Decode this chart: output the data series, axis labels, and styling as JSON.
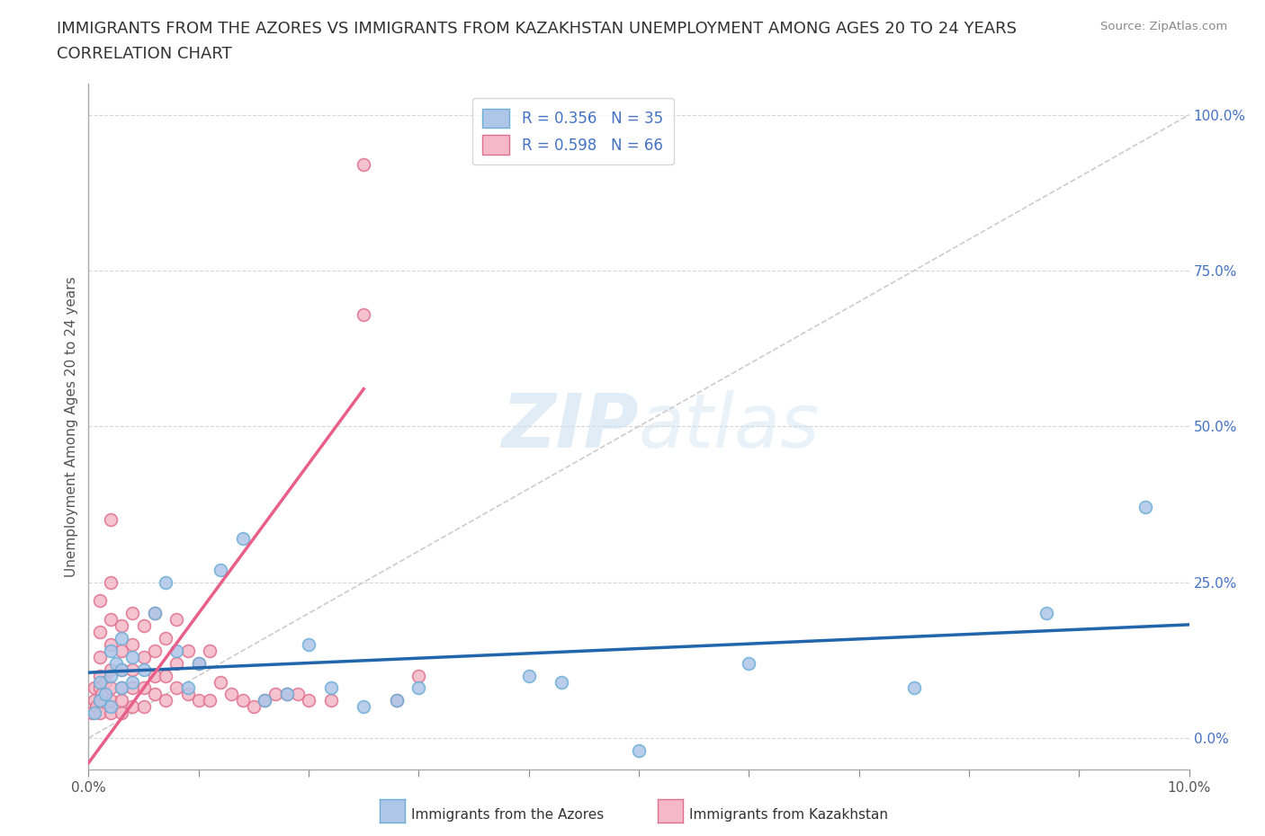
{
  "title_line1": "IMMIGRANTS FROM THE AZORES VS IMMIGRANTS FROM KAZAKHSTAN UNEMPLOYMENT AMONG AGES 20 TO 24 YEARS",
  "title_line2": "CORRELATION CHART",
  "source_text": "Source: ZipAtlas.com",
  "ylabel": "Unemployment Among Ages 20 to 24 years",
  "ytick_labels": [
    "0.0%",
    "25.0%",
    "50.0%",
    "75.0%",
    "100.0%"
  ],
  "ytick_values": [
    0,
    0.25,
    0.5,
    0.75,
    1.0
  ],
  "xlim": [
    0.0,
    0.1
  ],
  "ylim": [
    -0.05,
    1.05
  ],
  "azores_color": "#aec6e8",
  "azores_edge": "#6baed6",
  "kazakhstan_color": "#f4b8c8",
  "kazakhstan_edge": "#e07090",
  "azores_line_color": "#2166ac",
  "kazakhstan_line_color": "#e8608a",
  "diagonal_color": "#cccccc",
  "R_azores": 0.356,
  "N_azores": 35,
  "R_kazakhstan": 0.598,
  "N_kazakhstan": 66,
  "legend_label_azores": "Immigrants from the Azores",
  "legend_label_kazakhstan": "Immigrants from Kazakhstan",
  "watermark_zip": "ZIP",
  "watermark_atlas": "atlas",
  "background_color": "#ffffff",
  "azores_x": [
    0.0005,
    0.001,
    0.001,
    0.0015,
    0.002,
    0.002,
    0.002,
    0.0025,
    0.003,
    0.003,
    0.003,
    0.004,
    0.004,
    0.005,
    0.006,
    0.007,
    0.008,
    0.009,
    0.01,
    0.012,
    0.014,
    0.016,
    0.018,
    0.02,
    0.022,
    0.025,
    0.028,
    0.03,
    0.04,
    0.043,
    0.05,
    0.06,
    0.075,
    0.087,
    0.096
  ],
  "azores_y": [
    0.04,
    0.06,
    0.09,
    0.07,
    0.05,
    0.1,
    0.14,
    0.12,
    0.08,
    0.11,
    0.16,
    0.09,
    0.13,
    0.11,
    0.2,
    0.25,
    0.14,
    0.08,
    0.12,
    0.27,
    0.32,
    0.06,
    0.07,
    0.15,
    0.08,
    0.05,
    0.06,
    0.08,
    0.1,
    0.09,
    -0.02,
    0.12,
    0.08,
    0.2,
    0.37
  ],
  "kazakhstan_x": [
    0.0003,
    0.0005,
    0.0005,
    0.0007,
    0.001,
    0.001,
    0.001,
    0.001,
    0.001,
    0.001,
    0.001,
    0.0012,
    0.0015,
    0.002,
    0.002,
    0.002,
    0.002,
    0.002,
    0.002,
    0.002,
    0.002,
    0.003,
    0.003,
    0.003,
    0.003,
    0.003,
    0.003,
    0.004,
    0.004,
    0.004,
    0.004,
    0.004,
    0.005,
    0.005,
    0.005,
    0.005,
    0.006,
    0.006,
    0.006,
    0.006,
    0.007,
    0.007,
    0.007,
    0.008,
    0.008,
    0.008,
    0.009,
    0.009,
    0.01,
    0.01,
    0.011,
    0.011,
    0.012,
    0.013,
    0.014,
    0.015,
    0.016,
    0.017,
    0.018,
    0.019,
    0.02,
    0.022,
    0.025,
    0.025,
    0.028,
    0.03
  ],
  "kazakhstan_y": [
    0.04,
    0.06,
    0.08,
    0.05,
    0.04,
    0.06,
    0.08,
    0.1,
    0.13,
    0.17,
    0.22,
    0.07,
    0.09,
    0.04,
    0.06,
    0.08,
    0.11,
    0.15,
    0.19,
    0.25,
    0.35,
    0.04,
    0.06,
    0.08,
    0.11,
    0.14,
    0.18,
    0.05,
    0.08,
    0.11,
    0.15,
    0.2,
    0.05,
    0.08,
    0.13,
    0.18,
    0.07,
    0.1,
    0.14,
    0.2,
    0.06,
    0.1,
    0.16,
    0.08,
    0.12,
    0.19,
    0.07,
    0.14,
    0.06,
    0.12,
    0.06,
    0.14,
    0.09,
    0.07,
    0.06,
    0.05,
    0.06,
    0.07,
    0.07,
    0.07,
    0.06,
    0.06,
    0.68,
    0.92,
    0.06,
    0.1
  ],
  "title_fontsize": 13,
  "axis_label_fontsize": 11,
  "tick_fontsize": 11,
  "legend_fontsize": 12,
  "xtick_positions": [
    0.0,
    0.01,
    0.02,
    0.03,
    0.04,
    0.05,
    0.06,
    0.07,
    0.08,
    0.09,
    0.1
  ]
}
